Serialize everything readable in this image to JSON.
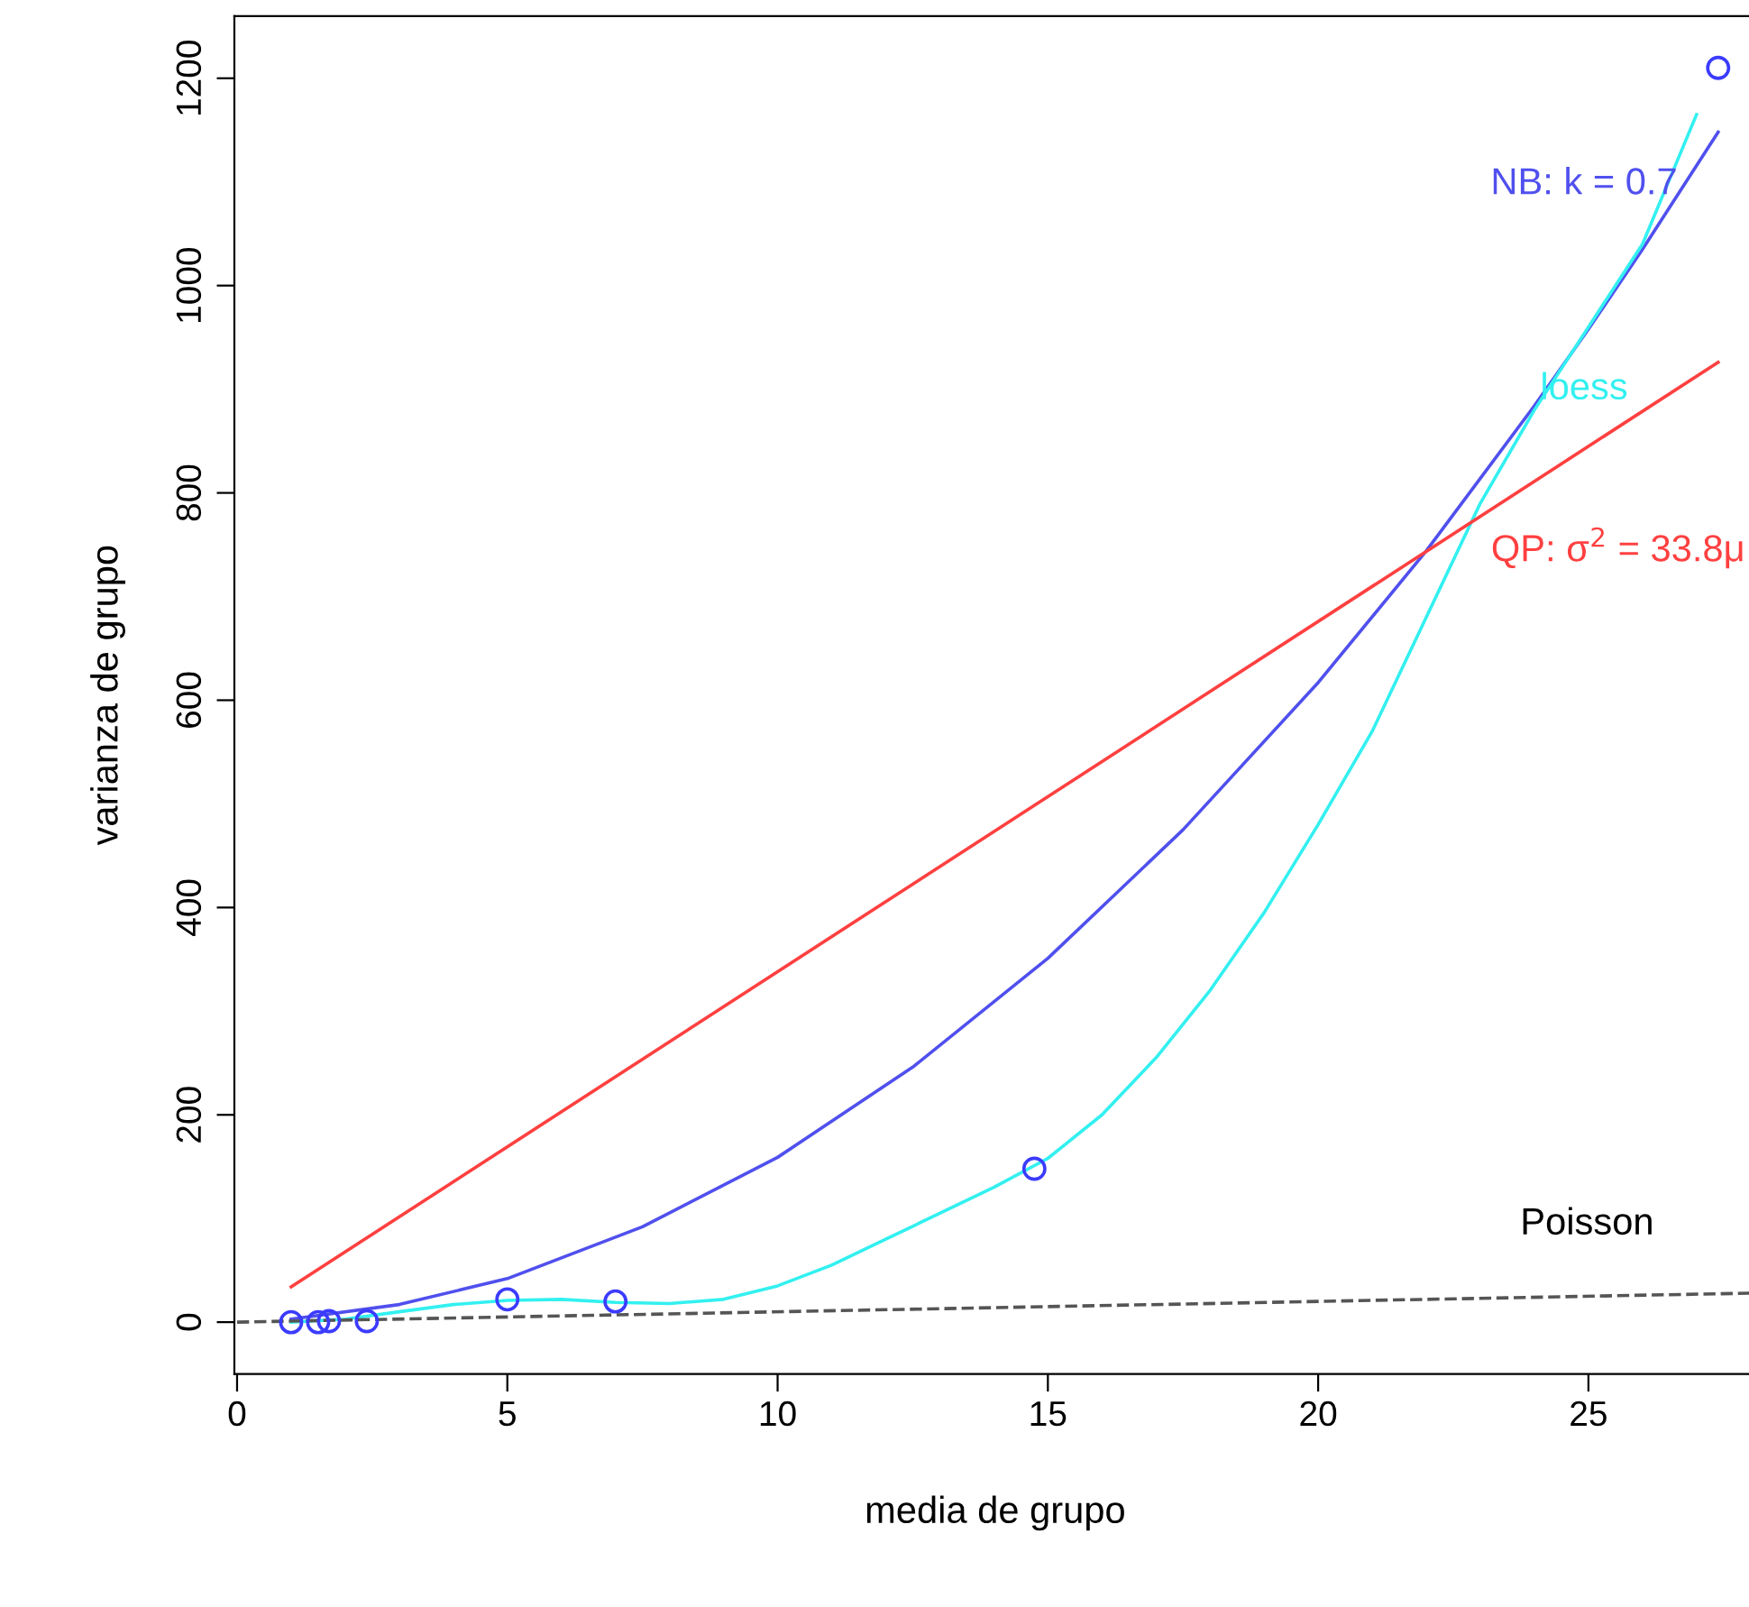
{
  "chart_data": {
    "type": "scatter",
    "xlabel": "media de grupo",
    "ylabel": "varianza de grupo",
    "xlim": [
      -0.05,
      28.1
    ],
    "ylim": [
      -50,
      1260
    ],
    "xticks": [
      0,
      5,
      10,
      15,
      20,
      25
    ],
    "yticks": [
      0,
      200,
      400,
      600,
      800,
      1000,
      1200
    ],
    "grid": false,
    "legend": false,
    "series": [
      {
        "type": "line",
        "color": "#5050ee",
        "line_style": "solid",
        "marker": "none",
        "x": [
          1,
          3,
          5,
          7.5,
          10,
          12.5,
          15,
          17.5,
          20,
          22,
          24,
          25,
          26,
          27.4
        ],
        "values": [
          3,
          17,
          42,
          92,
          159,
          246,
          351,
          475,
          617,
          744,
          884,
          958,
          1035,
          1148
        ]
      },
      {
        "type": "line",
        "color": "#33f0f0",
        "line_style": "solid",
        "marker": "none",
        "x": [
          1,
          2,
          3,
          4,
          5,
          6,
          7,
          8,
          9,
          10,
          11,
          12,
          13,
          14,
          15,
          16,
          17,
          18,
          19,
          20,
          21,
          22,
          23,
          24,
          25,
          26,
          27
        ],
        "values": [
          0,
          3,
          10,
          17,
          21,
          22,
          19,
          18,
          22,
          35,
          55,
          80,
          105,
          130,
          158,
          200,
          255,
          320,
          395,
          480,
          570,
          680,
          790,
          880,
          960,
          1040,
          1165
        ]
      },
      {
        "type": "line",
        "color": "#ff4040",
        "line_style": "solid",
        "marker": "none",
        "x": [
          1,
          27.4
        ],
        "values": [
          34,
          926
        ]
      },
      {
        "type": "line",
        "color": "#555555",
        "line_style": "dashed",
        "marker": "none",
        "x": [
          0,
          28
        ],
        "values": [
          0,
          28
        ]
      },
      {
        "color": "#3b3bff",
        "marker": "circle",
        "x": [
          1,
          1.5,
          1.7,
          2.4,
          5,
          7,
          14.75,
          27.4
        ],
        "values": [
          0,
          0,
          1,
          1,
          22,
          20,
          148,
          1210
        ]
      }
    ],
    "annotations": [
      "NB: k = 0.7",
      "loess",
      "QP: σ$^{2}$ = 33.8μ",
      "Poisson"
    ]
  }
}
